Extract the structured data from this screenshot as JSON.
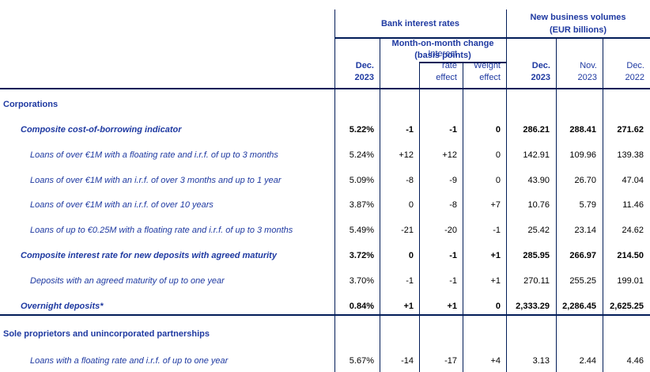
{
  "colors": {
    "navy_text": "#1e39a1",
    "grid_line": "#021c58",
    "data_text": "#000000"
  },
  "table": {
    "header": {
      "group_rates": "Bank interest rates",
      "group_volumes_line1": "New business volumes",
      "group_volumes_line2": "(EUR billions)",
      "subgroup_line1": "Month-on-month change",
      "subgroup_line2": "(basis points)",
      "columns": [
        {
          "key": "rate-dec-2023",
          "line1": "Dec.",
          "line2": "2023",
          "bold": true
        },
        {
          "key": "mom-change",
          "line1": "",
          "line2": "",
          "bold": false
        },
        {
          "key": "rate-effect",
          "line1": "Interest",
          "line2": "rate effect",
          "bold": false
        },
        {
          "key": "weight-effect",
          "line1": "Weight",
          "line2": "effect",
          "bold": false
        },
        {
          "key": "volume-dec-2023",
          "line1": "Dec.",
          "line2": "2023",
          "bold": true
        },
        {
          "key": "volume-nov-2023",
          "line1": "Nov.",
          "line2": "2023",
          "bold": false
        },
        {
          "key": "volume-dec-2022",
          "line1": "Dec.",
          "line2": "2022",
          "bold": false
        }
      ]
    },
    "sections": [
      {
        "title": "Corporations",
        "rows": [
          {
            "style": "composite",
            "label": "Composite cost-of-borrowing indicator",
            "values": [
              "5.22%",
              "-1",
              "-1",
              "0",
              "286.21",
              "288.41",
              "271.62"
            ]
          },
          {
            "style": "item",
            "label": "Loans of over €1M with a floating rate and i.r.f. of up to 3 months",
            "values": [
              "5.24%",
              "+12",
              "+12",
              "0",
              "142.91",
              "109.96",
              "139.38"
            ]
          },
          {
            "style": "item",
            "label": "Loans of over €1M with an i.r.f. of over 3 months and up to 1 year",
            "values": [
              "5.09%",
              "-8",
              "-9",
              "0",
              "43.90",
              "26.70",
              "47.04"
            ]
          },
          {
            "style": "item",
            "label": "Loans of over €1M with an i.r.f. of over 10 years",
            "values": [
              "3.87%",
              "0",
              "-8",
              "+7",
              "10.76",
              "5.79",
              "11.46"
            ]
          },
          {
            "style": "item",
            "label": "Loans of up to €0.25M with a floating rate and i.r.f. of up to 3 months",
            "values": [
              "5.49%",
              "-21",
              "-20",
              "-1",
              "25.42",
              "23.14",
              "24.62"
            ]
          },
          {
            "style": "composite",
            "label": "Composite interest rate for new deposits with agreed maturity",
            "values": [
              "3.72%",
              "0",
              "-1",
              "+1",
              "285.95",
              "266.97",
              "214.50"
            ]
          },
          {
            "style": "item",
            "label": "Deposits with an agreed maturity of up to one year",
            "values": [
              "3.70%",
              "-1",
              "-1",
              "+1",
              "270.11",
              "255.25",
              "199.01"
            ]
          },
          {
            "style": "composite",
            "label": "Overnight deposits*",
            "values": [
              "0.84%",
              "+1",
              "+1",
              "0",
              "2,333.29",
              "2,286.45",
              "2,625.25"
            ]
          }
        ]
      },
      {
        "title": "Sole proprietors and unincorporated partnerships",
        "rows": [
          {
            "style": "item",
            "label": "Loans with a floating rate and i.r.f. of up to one year",
            "values": [
              "5.67%",
              "-14",
              "-17",
              "+4",
              "3.13",
              "2.44",
              "4.46"
            ]
          }
        ]
      }
    ]
  }
}
